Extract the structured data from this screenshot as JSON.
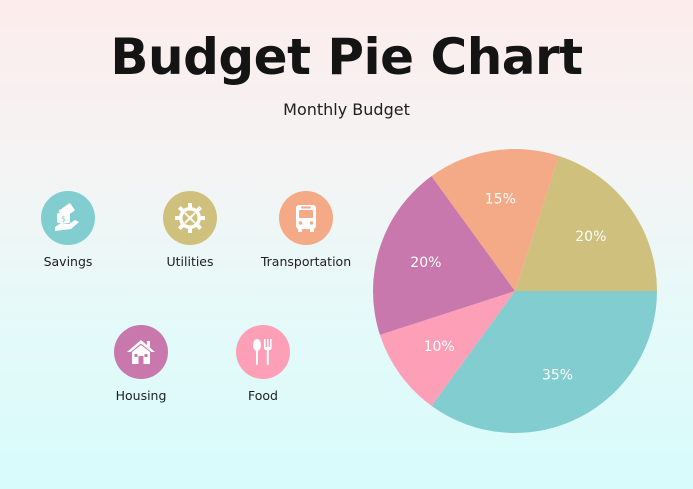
{
  "header": {
    "title": "Budget Pie Chart",
    "subtitle": "Monthly Budget"
  },
  "categories": [
    {
      "name": "Savings",
      "icon": "money-hand-icon",
      "color": "#82cdd0"
    },
    {
      "name": "Utilities",
      "icon": "tools-gear-icon",
      "color": "#cfc17d"
    },
    {
      "name": "Transportation",
      "icon": "bus-icon",
      "color": "#f4a987"
    },
    {
      "name": "Housing",
      "icon": "house-icon",
      "color": "#c878ac"
    },
    {
      "name": "Food",
      "icon": "spoon-fork-icon",
      "color": "#fd9fb7"
    }
  ],
  "chart_data": {
    "type": "pie",
    "title": "Budget Pie Chart",
    "subtitle": "Monthly Budget",
    "slices": [
      {
        "category": "Savings",
        "value": 35,
        "label": "35%",
        "color": "#82cdd0"
      },
      {
        "category": "Food",
        "value": 10,
        "label": "10%",
        "color": "#fd9fb7"
      },
      {
        "category": "Housing",
        "value": 20,
        "label": "20%",
        "color": "#c878ac"
      },
      {
        "category": "Transportation",
        "value": 15,
        "label": "15%",
        "color": "#f4a987"
      },
      {
        "category": "Utilities",
        "value": 20,
        "label": "20%",
        "color": "#cfc17d"
      }
    ]
  }
}
